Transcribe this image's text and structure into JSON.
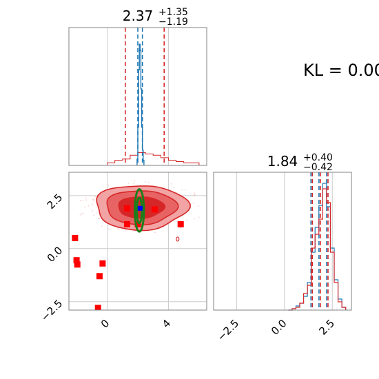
{
  "chart_data": [
    {
      "type": "histogram",
      "panel": "top-left marginal",
      "title": {
        "value": "2.37",
        "upper": "+1.35",
        "lower": "−1.19"
      },
      "xlim": [
        -2.5,
        6.5
      ],
      "grid": true,
      "quantile_lines_red": [
        1.18,
        3.72
      ],
      "quantile_lines_blue": [
        2.0,
        2.3
      ],
      "blue_series": {
        "x": [
          1.95,
          2.0,
          2.05,
          2.1,
          2.15,
          2.2,
          2.25,
          2.3,
          2.35,
          2.4
        ],
        "height": [
          0.05,
          0.3,
          0.75,
          0.95,
          0.9,
          0.6,
          0.3,
          0.12,
          0.04,
          0.0
        ]
      },
      "red_series": {
        "x": [
          -1.5,
          -0.5,
          0.0,
          0.5,
          1.0,
          1.5,
          2.0,
          2.5,
          3.0,
          3.5,
          4.0,
          4.5,
          5.0,
          5.5,
          6.0
        ],
        "height": [
          0.0,
          0.0,
          0.02,
          0.04,
          0.05,
          0.08,
          0.1,
          0.09,
          0.08,
          0.06,
          0.04,
          0.03,
          0.02,
          0.02,
          0.0
        ]
      }
    },
    {
      "type": "scatter",
      "panel": "bottom-left 2D",
      "xlim": [
        -2.5,
        6.5
      ],
      "ylim": [
        -2.9,
        3.6
      ],
      "xticks": [
        "0",
        "4"
      ],
      "yticks": [
        "2.5",
        "0.0",
        "−2.5"
      ],
      "grid": true,
      "red_contour_center": [
        2.2,
        1.95
      ],
      "green_ellipse": {
        "center": [
          2.1,
          1.8
        ],
        "half_width": 0.3,
        "half_height": 1.0
      },
      "blue_point": [
        2.15,
        1.9
      ],
      "red_squares": [
        [
          1.3,
          1.9
        ],
        [
          3.1,
          1.85
        ],
        [
          1.3,
          1.15
        ],
        [
          2.0,
          1.15
        ],
        [
          4.8,
          1.15
        ],
        [
          -2.1,
          0.5
        ],
        [
          -2.0,
          -0.55
        ],
        [
          -1.95,
          -0.75
        ],
        [
          -0.3,
          -0.7
        ],
        [
          -0.5,
          -1.3
        ],
        [
          -0.6,
          -2.8
        ]
      ]
    },
    {
      "type": "histogram",
      "panel": "bottom-right marginal",
      "title": {
        "value": "1.84",
        "upper": "+0.40",
        "lower": "−0.42"
      },
      "xlim": [
        -3.7,
        3.5
      ],
      "xticks": [
        "−2.5",
        "0.0",
        "2.5"
      ],
      "grid": true,
      "quantile_lines_red": [
        1.42,
        1.84,
        2.24
      ],
      "quantile_lines_blue": [
        1.42,
        1.84,
        2.24
      ],
      "blue_series": {
        "x": [
          0.2,
          0.4,
          0.6,
          0.8,
          1.0,
          1.2,
          1.4,
          1.6,
          1.8,
          2.0,
          2.2,
          2.4,
          2.6,
          2.8,
          3.0,
          3.2
        ],
        "height": [
          0.0,
          0.01,
          0.03,
          0.05,
          0.1,
          0.2,
          0.42,
          0.6,
          0.76,
          0.92,
          0.75,
          0.45,
          0.22,
          0.08,
          0.02,
          0.0
        ]
      },
      "red_series": {
        "x": [
          0.2,
          0.4,
          0.6,
          0.8,
          1.0,
          1.2,
          1.4,
          1.6,
          1.8,
          2.0,
          2.2,
          2.4,
          2.6,
          2.8,
          3.0,
          3.2
        ],
        "height": [
          0.0,
          0.01,
          0.02,
          0.05,
          0.12,
          0.18,
          0.45,
          0.55,
          0.66,
          0.88,
          0.78,
          0.42,
          0.2,
          0.06,
          0.02,
          0.0
        ]
      }
    }
  ],
  "annotation": {
    "text": "KL = 0.00"
  },
  "colors": {
    "blue": "#1f77b4",
    "red": "#d62728",
    "green": "#1a7f1a",
    "contour_light": "#f2a3a3",
    "contour_mid": "#e86464",
    "contour_dark": "#d62728",
    "marker_red": "#ff0000",
    "marker_blue": "#0000ff",
    "grid": "#cccccc",
    "axis": "#808080"
  }
}
